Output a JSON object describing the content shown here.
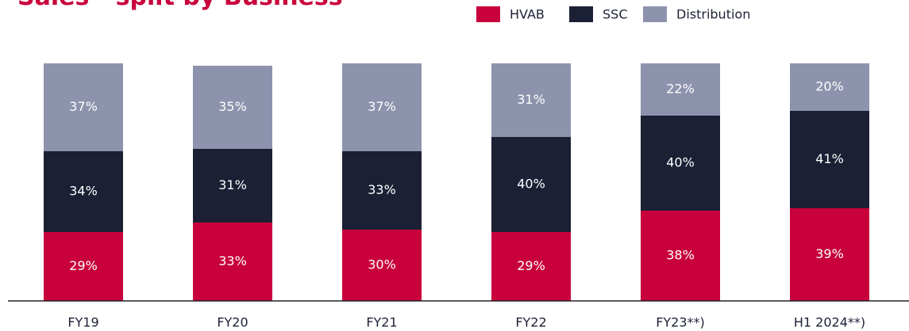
{
  "chart_data": {
    "type": "stacked_bar",
    "title": "Sales - split by Business",
    "categories": [
      "FY19",
      "FY20",
      "FY21",
      "FY22",
      "FY23**)",
      "H1 2024**)"
    ],
    "series": [
      {
        "name": "HVAB",
        "color": "#c8003c",
        "values": [
          29,
          33,
          30,
          29,
          38,
          39
        ],
        "value_labels": [
          "29%",
          "33%",
          "30%",
          "29%",
          "38%",
          "39%"
        ]
      },
      {
        "name": "SSC",
        "color": "#1b2035",
        "values": [
          34,
          31,
          33,
          40,
          40,
          41
        ],
        "value_labels": [
          "34%",
          "31%",
          "33%",
          "40%",
          "40%",
          "41%"
        ]
      },
      {
        "name": "Distribution",
        "color": "#8e93ad",
        "values": [
          37,
          35,
          37,
          31,
          22,
          20
        ],
        "value_labels": [
          "37%",
          "35%",
          "37%",
          "31%",
          "22%",
          "20%"
        ]
      }
    ],
    "ylim": [
      0,
      100
    ]
  }
}
